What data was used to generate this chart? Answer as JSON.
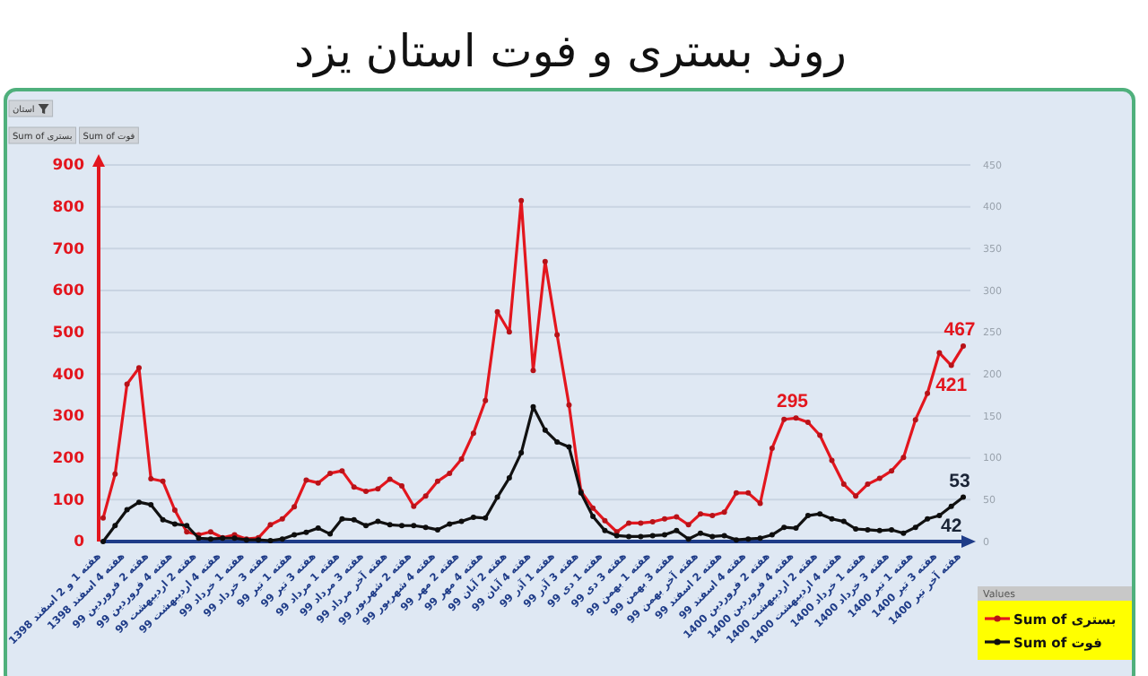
{
  "chart_data": {
    "type": "line",
    "title": "روند بستری و فوت استان یزد",
    "categories": [
      "هفته 1 و 2 اسفند 1398",
      null,
      "هفته 4 اسفند 1398",
      null,
      "هفته 2 فروردین 99",
      null,
      "هفته 4 فروردین 99",
      null,
      "هفته 2 اردیبهشت 99",
      null,
      "هفته 4 اردیبهشت 99",
      null,
      "هفته 1 خرداد 99",
      null,
      "هفته 3 خرداد 99",
      null,
      "هفته 1 تیر 99",
      null,
      "هفته 3 تیر 99",
      null,
      "هفته 1 مرداد 99",
      null,
      "هفته 3 مرداد 99",
      null,
      "هفته آخر مرداد 99",
      null,
      "هفته 2 شهریور 99",
      null,
      "هفته 4 شهریور 99",
      null,
      "هفته 2 مهر 99",
      null,
      "هفته 4 مهر 99",
      null,
      "هفته 2 آبان 99",
      null,
      "هفته 4 آبان 99",
      null,
      "هفته 1 آذر 99",
      null,
      "هفته 3 آذر 99",
      null,
      "هفته 1 دی 99",
      null,
      "هفته 3 دی 99",
      null,
      "هفته 1 بهمن 99",
      null,
      "هفته 3 بهمن 99",
      null,
      "هفته آخر بهمن 99",
      null,
      "هفته 2 اسفند 99",
      null,
      "هفته 4 اسفند 99",
      null,
      "هفته 2 فروردین 1400",
      null,
      "هفته 4 فروردین 1400",
      null,
      "هفته 2 اردیبهشت 1400",
      null,
      "هفته 4 اردیبهشت 1400",
      null,
      "هفته 1 خرداد 1400",
      null,
      "هفته 3 خرداد 1400",
      null,
      "هفته 1 تیر 1400",
      null,
      "هفته 3 تیر 1400",
      null,
      "هفته آخر تیر 1400"
    ],
    "series": [
      {
        "name": "Sum of بستری",
        "color": "#e3161e",
        "values": [
          56,
          161,
          376,
          415,
          150,
          144,
          75,
          23,
          16,
          23,
          9,
          16,
          6,
          9,
          40,
          54,
          83,
          147,
          140,
          163,
          169,
          130,
          120,
          126,
          149,
          133,
          84,
          109,
          144,
          163,
          197,
          259,
          337,
          549,
          501,
          815,
          409,
          669,
          494,
          326,
          120,
          80,
          50,
          23,
          44,
          44,
          47,
          54,
          59,
          40,
          66,
          62,
          70,
          116,
          116,
          91,
          223,
          292,
          295,
          285,
          254,
          194,
          137,
          109,
          137,
          151,
          169,
          201,
          291,
          354,
          451,
          421,
          467
        ],
        "value_labels": [
          null,
          null,
          null,
          null,
          null,
          null,
          null,
          null,
          null,
          null,
          null,
          null,
          null,
          null,
          null,
          null,
          null,
          null,
          null,
          null,
          null,
          null,
          null,
          null,
          null,
          null,
          null,
          null,
          null,
          null,
          null,
          null,
          null,
          null,
          null,
          null,
          null,
          null,
          null,
          null,
          null,
          null,
          null,
          null,
          null,
          null,
          null,
          null,
          null,
          null,
          null,
          null,
          null,
          null,
          null,
          null,
          null,
          null,
          "295",
          null,
          null,
          null,
          null,
          null,
          null,
          null,
          null,
          null,
          null,
          null,
          null,
          "421",
          "467"
        ]
      },
      {
        "name": "Sum of فوت",
        "color": "#111111",
        "axis": "y2",
        "values": [
          0,
          19,
          38,
          47,
          44,
          26,
          21,
          19,
          4,
          3,
          4,
          4,
          2,
          2,
          1,
          3,
          8,
          11,
          16,
          9,
          27,
          26,
          19,
          24,
          20,
          19,
          19,
          17,
          14,
          21,
          24,
          29,
          28,
          53,
          76,
          106,
          161,
          133,
          119,
          113,
          58,
          30,
          13,
          7,
          6,
          6,
          7,
          8,
          13,
          3,
          10,
          6,
          7,
          2,
          3,
          4,
          8,
          17,
          16,
          31,
          33,
          27,
          24,
          15,
          14,
          13,
          14,
          10,
          17,
          27,
          31,
          42,
          53
        ],
        "value_labels": [
          null,
          null,
          null,
          null,
          null,
          null,
          null,
          null,
          null,
          null,
          null,
          null,
          null,
          null,
          null,
          null,
          null,
          null,
          null,
          null,
          null,
          null,
          null,
          null,
          null,
          null,
          null,
          null,
          null,
          null,
          null,
          null,
          null,
          null,
          null,
          null,
          null,
          null,
          null,
          null,
          null,
          null,
          null,
          null,
          null,
          null,
          null,
          null,
          null,
          null,
          null,
          null,
          null,
          null,
          null,
          null,
          null,
          null,
          null,
          null,
          null,
          null,
          null,
          null,
          null,
          null,
          null,
          null,
          null,
          null,
          null,
          "42",
          "53"
        ]
      }
    ],
    "ylim": [
      0,
      900
    ],
    "yticks": [
      0,
      100,
      200,
      300,
      400,
      500,
      600,
      700,
      800,
      900
    ],
    "y2lim": [
      0,
      450
    ],
    "y2ticks": [
      0,
      50,
      100,
      150,
      200,
      250,
      300,
      350,
      400,
      450
    ],
    "grid": "y",
    "legend": "bottom right",
    "legend_title": "Values",
    "marker": "circle",
    "line_style": "solid",
    "annotations": [
      "استان",
      "Sum of بستری",
      "Sum of فوت"
    ]
  }
}
